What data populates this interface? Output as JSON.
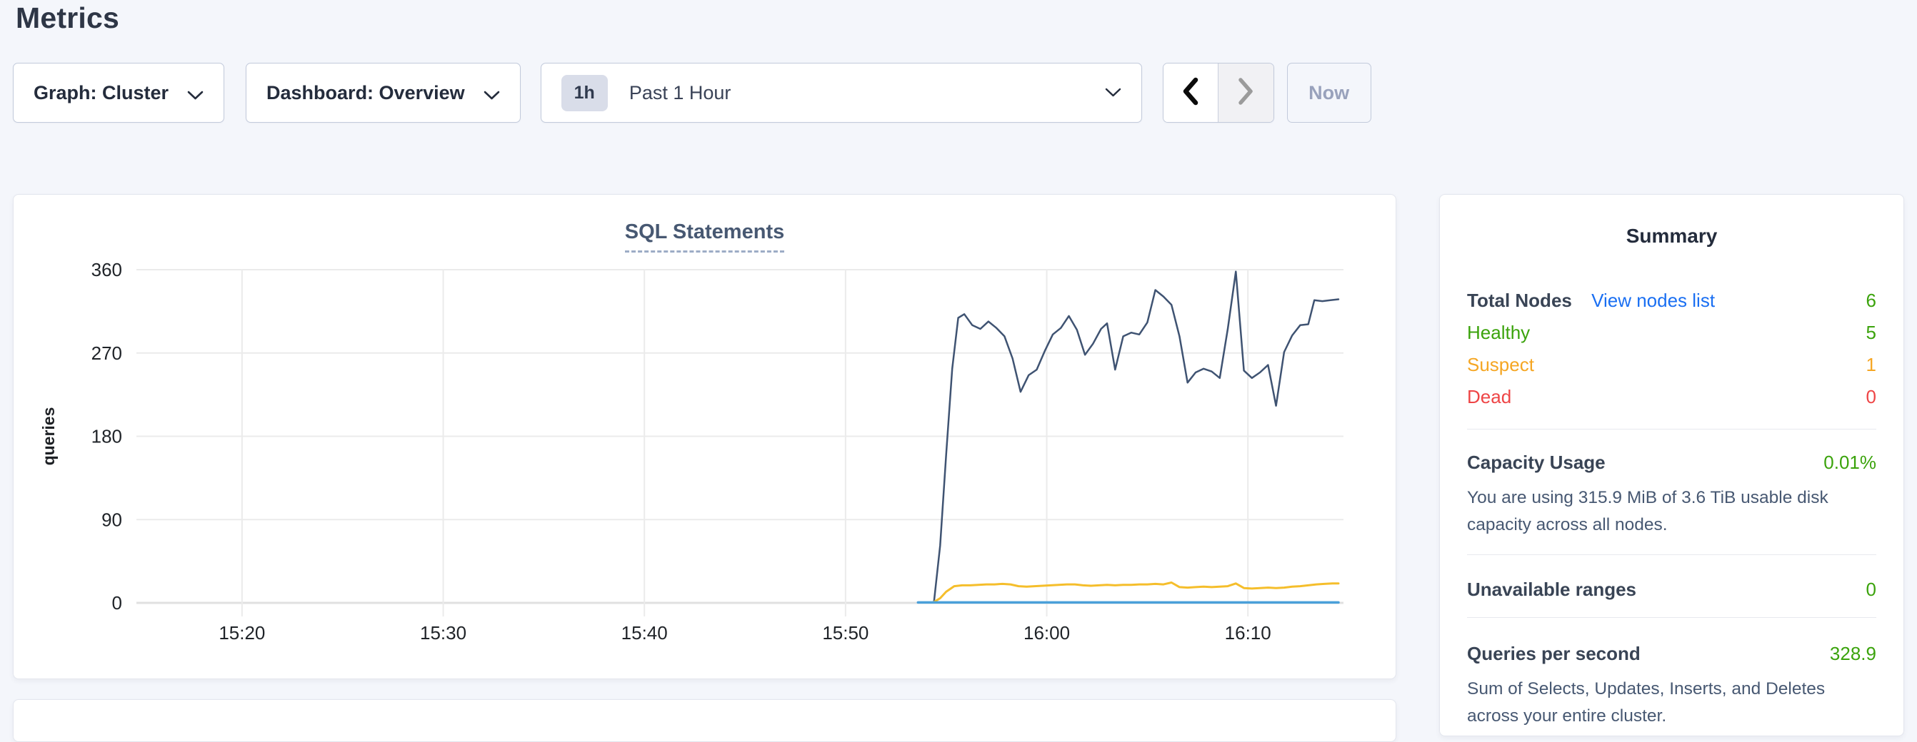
{
  "page": {
    "title": "Metrics"
  },
  "toolbar": {
    "graph_dropdown": "Graph: Cluster",
    "dashboard_dropdown": "Dashboard: Overview",
    "time_window": {
      "badge": "1h",
      "label": "Past 1 Hour"
    },
    "now_button": "Now"
  },
  "summary": {
    "title": "Summary",
    "total_nodes": {
      "label": "Total Nodes",
      "link": "View nodes list",
      "value": "6"
    },
    "healthy": {
      "label": "Healthy",
      "value": "5"
    },
    "suspect": {
      "label": "Suspect",
      "value": "1"
    },
    "dead": {
      "label": "Dead",
      "value": "0"
    },
    "capacity": {
      "label": "Capacity Usage",
      "value": "0.01%",
      "desc": "You are using 315.9 MiB of 3.6 TiB usable disk capacity across all nodes."
    },
    "unavailable": {
      "label": "Unavailable ranges",
      "value": "0"
    },
    "qps": {
      "label": "Queries per second",
      "value": "328.9",
      "desc": "Sum of Selects, Updates, Inserts, and Deletes across your entire cluster."
    }
  },
  "colors": {
    "link": "#1a6ff2",
    "green": "#3ba30c",
    "orange": "#f5a623",
    "red": "#ee4546",
    "grid": "#ebebeb",
    "grid_zero": "#e0e0e0",
    "tick_text": "#1f2328"
  },
  "chart_data": {
    "type": "line",
    "title": "SQL Statements",
    "xlabel": "",
    "ylabel": "queries",
    "ylim": [
      0,
      360
    ],
    "yticks": [
      0,
      90,
      180,
      270,
      360
    ],
    "x_domain_minutes": [
      14.75,
      74.75
    ],
    "xticks": [
      {
        "minute": 20,
        "label": "15:20"
      },
      {
        "minute": 30,
        "label": "15:30"
      },
      {
        "minute": 40,
        "label": "15:40"
      },
      {
        "minute": 50,
        "label": "15:50"
      },
      {
        "minute": 60,
        "label": "16:00"
      },
      {
        "minute": 70,
        "label": "16:10"
      }
    ],
    "grid": true,
    "legend_position": "none",
    "series": [
      {
        "name": "navy-series",
        "color": "#3f5372",
        "width": 2.5,
        "points": [
          [
            54.4,
            2
          ],
          [
            54.7,
            62
          ],
          [
            55.0,
            160
          ],
          [
            55.3,
            253
          ],
          [
            55.6,
            308
          ],
          [
            55.9,
            312
          ],
          [
            56.3,
            300
          ],
          [
            56.7,
            296
          ],
          [
            57.1,
            304
          ],
          [
            57.5,
            297
          ],
          [
            57.9,
            288
          ],
          [
            58.3,
            264
          ],
          [
            58.7,
            228
          ],
          [
            59.1,
            246
          ],
          [
            59.5,
            252
          ],
          [
            59.9,
            272
          ],
          [
            60.3,
            290
          ],
          [
            60.7,
            297
          ],
          [
            61.1,
            310
          ],
          [
            61.5,
            295
          ],
          [
            61.9,
            268
          ],
          [
            62.3,
            280
          ],
          [
            62.7,
            296
          ],
          [
            63.0,
            302
          ],
          [
            63.4,
            252
          ],
          [
            63.8,
            288
          ],
          [
            64.2,
            292
          ],
          [
            64.6,
            290
          ],
          [
            65.0,
            303
          ],
          [
            65.4,
            338
          ],
          [
            65.8,
            331
          ],
          [
            66.2,
            322
          ],
          [
            66.6,
            288
          ],
          [
            67.0,
            238
          ],
          [
            67.4,
            249
          ],
          [
            67.8,
            253
          ],
          [
            68.2,
            250
          ],
          [
            68.6,
            243
          ],
          [
            69.0,
            296
          ],
          [
            69.4,
            358
          ],
          [
            69.8,
            251
          ],
          [
            70.2,
            243
          ],
          [
            70.6,
            249
          ],
          [
            71.0,
            257
          ],
          [
            71.4,
            213
          ],
          [
            71.8,
            271
          ],
          [
            72.2,
            289
          ],
          [
            72.6,
            300
          ],
          [
            73.0,
            301
          ],
          [
            73.3,
            327
          ],
          [
            73.7,
            326
          ],
          [
            74.1,
            327
          ],
          [
            74.5,
            328
          ]
        ]
      },
      {
        "name": "yellow-series",
        "color": "#f5be2b",
        "width": 3,
        "points": [
          [
            54.4,
            1
          ],
          [
            54.7,
            5
          ],
          [
            55.0,
            12
          ],
          [
            55.4,
            18
          ],
          [
            55.8,
            19
          ],
          [
            56.2,
            19
          ],
          [
            56.6,
            19.5
          ],
          [
            57.0,
            20
          ],
          [
            57.4,
            20
          ],
          [
            57.8,
            20.5
          ],
          [
            58.2,
            20
          ],
          [
            58.6,
            18
          ],
          [
            59.0,
            17.5
          ],
          [
            59.4,
            18
          ],
          [
            59.8,
            18.5
          ],
          [
            60.2,
            19
          ],
          [
            60.6,
            19.5
          ],
          [
            61.0,
            20
          ],
          [
            61.4,
            20
          ],
          [
            61.8,
            19
          ],
          [
            62.2,
            18.5
          ],
          [
            62.6,
            19
          ],
          [
            63.0,
            19.5
          ],
          [
            63.4,
            19
          ],
          [
            63.8,
            19.5
          ],
          [
            64.2,
            19.5
          ],
          [
            64.6,
            20
          ],
          [
            65.0,
            20
          ],
          [
            65.4,
            20.5
          ],
          [
            65.8,
            20
          ],
          [
            66.2,
            22
          ],
          [
            66.6,
            17
          ],
          [
            67.0,
            16.5
          ],
          [
            67.4,
            17
          ],
          [
            67.8,
            17.5
          ],
          [
            68.2,
            17
          ],
          [
            68.6,
            17.5
          ],
          [
            69.0,
            18
          ],
          [
            69.4,
            21
          ],
          [
            69.8,
            16
          ],
          [
            70.2,
            15.5
          ],
          [
            70.6,
            16
          ],
          [
            71.0,
            16.5
          ],
          [
            71.4,
            16
          ],
          [
            71.8,
            16.5
          ],
          [
            72.2,
            17.5
          ],
          [
            72.6,
            18
          ],
          [
            73.0,
            19
          ],
          [
            73.4,
            20
          ],
          [
            73.8,
            20.5
          ],
          [
            74.2,
            21
          ],
          [
            74.5,
            21
          ]
        ]
      },
      {
        "name": "blue-series",
        "color": "#4aa0d9",
        "width": 3.5,
        "points": [
          [
            53.6,
            0.5
          ],
          [
            74.5,
            0.5
          ]
        ]
      }
    ]
  }
}
